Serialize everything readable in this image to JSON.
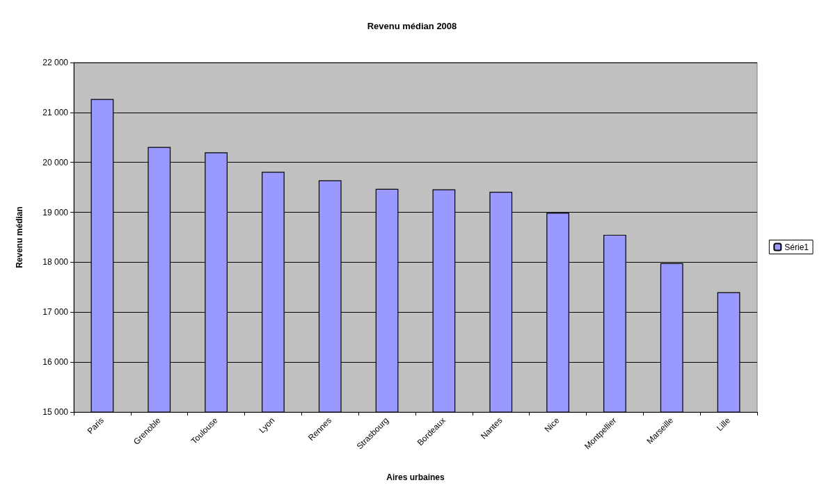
{
  "chart_data": {
    "type": "bar",
    "title": "Revenu médian 2008",
    "xlabel": "Aires urbaines",
    "ylabel": "Revenu médian",
    "categories": [
      "Paris",
      "Grenoble",
      "Toulouse",
      "Lyon",
      "Rennes",
      "Strasbourg",
      "Bordeaux",
      "Nantes",
      "Nice",
      "Montpellier",
      "Marseille",
      "Lille"
    ],
    "series": [
      {
        "name": "Série1",
        "color": "#9999ff",
        "values": [
          21270,
          20310,
          20200,
          19810,
          19640,
          19470,
          19460,
          19410,
          18990,
          18550,
          17980,
          17400
        ]
      }
    ],
    "ylim": [
      15000,
      22000
    ],
    "yticks": [
      {
        "value": 15000,
        "label": "15 000"
      },
      {
        "value": 16000,
        "label": "16 000"
      },
      {
        "value": 17000,
        "label": "17 000"
      },
      {
        "value": 18000,
        "label": "18 000"
      },
      {
        "value": 19000,
        "label": "19 000"
      },
      {
        "value": 20000,
        "label": "20 000"
      },
      {
        "value": 21000,
        "label": "21 000"
      },
      {
        "value": 22000,
        "label": "22 000"
      }
    ],
    "grid": "y",
    "legend": "right"
  }
}
